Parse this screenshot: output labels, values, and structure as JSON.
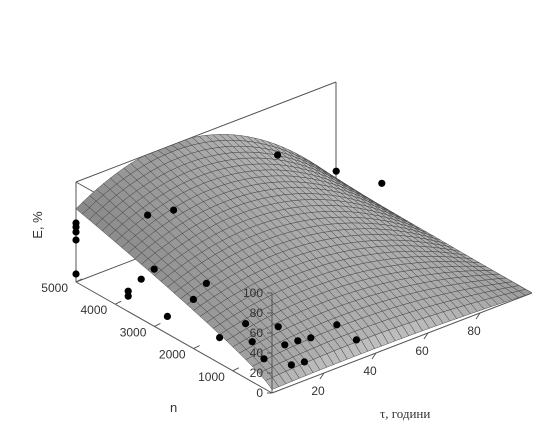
{
  "chart_data": {
    "type": "surface3d",
    "title": "",
    "xlabel": "τ, години",
    "ylabel": "n",
    "zlabel": "E, %",
    "xlim": [
      0,
      100
    ],
    "ylim": [
      0,
      5000
    ],
    "zlim": [
      0,
      100
    ],
    "x_ticks": [
      20,
      40,
      60,
      80
    ],
    "y_ticks": [
      1000,
      2000,
      3000,
      4000,
      5000
    ],
    "z_ticks": [
      0,
      20,
      40,
      60,
      80,
      100
    ],
    "grid": false,
    "surface": {
      "color": "#8c8c8c",
      "mesh_color": "#3c3c3c",
      "peak": {
        "x": 35,
        "y": 5000,
        "z": 98
      }
    },
    "points": [
      {
        "x": 0,
        "y": 5000,
        "z": 8
      },
      {
        "x": 0,
        "y": 5000,
        "z": 42
      },
      {
        "x": 0,
        "y": 5000,
        "z": 50
      },
      {
        "x": 0,
        "y": 5000,
        "z": 55
      },
      {
        "x": 0,
        "y": 5000,
        "z": 59
      },
      {
        "x": 5,
        "y": 4000,
        "z": 8
      },
      {
        "x": 5,
        "y": 3000,
        "z": 5
      },
      {
        "x": 5,
        "y": 4000,
        "z": 3
      },
      {
        "x": 10,
        "y": 2000,
        "z": 1
      },
      {
        "x": 10,
        "y": 4000,
        "z": 15
      },
      {
        "x": 15,
        "y": 3000,
        "z": 12
      },
      {
        "x": 15,
        "y": 4000,
        "z": 20
      },
      {
        "x": 20,
        "y": 3000,
        "z": 23
      },
      {
        "x": 20,
        "y": 4500,
        "z": 58
      },
      {
        "x": 30,
        "y": 4500,
        "z": 53
      },
      {
        "x": 12,
        "y": 1000,
        "z": 0
      },
      {
        "x": 15,
        "y": 1500,
        "z": 3
      },
      {
        "x": 20,
        "y": 2000,
        "z": 5
      },
      {
        "x": 20,
        "y": 1000,
        "z": 6
      },
      {
        "x": 25,
        "y": 1000,
        "z": 5
      },
      {
        "x": 25,
        "y": 1500,
        "z": 8
      },
      {
        "x": 30,
        "y": 1000,
        "z": 3
      },
      {
        "x": 15,
        "y": 500,
        "z": 2
      },
      {
        "x": 20,
        "y": 500,
        "z": 0
      },
      {
        "x": 40,
        "y": 1000,
        "z": 6
      },
      {
        "x": 40,
        "y": 500,
        "z": 2
      },
      {
        "x": 70,
        "y": 4500,
        "z": 68
      },
      {
        "x": 85,
        "y": 4000,
        "z": 48
      },
      {
        "x": 95,
        "y": 3500,
        "z": 37
      }
    ]
  }
}
